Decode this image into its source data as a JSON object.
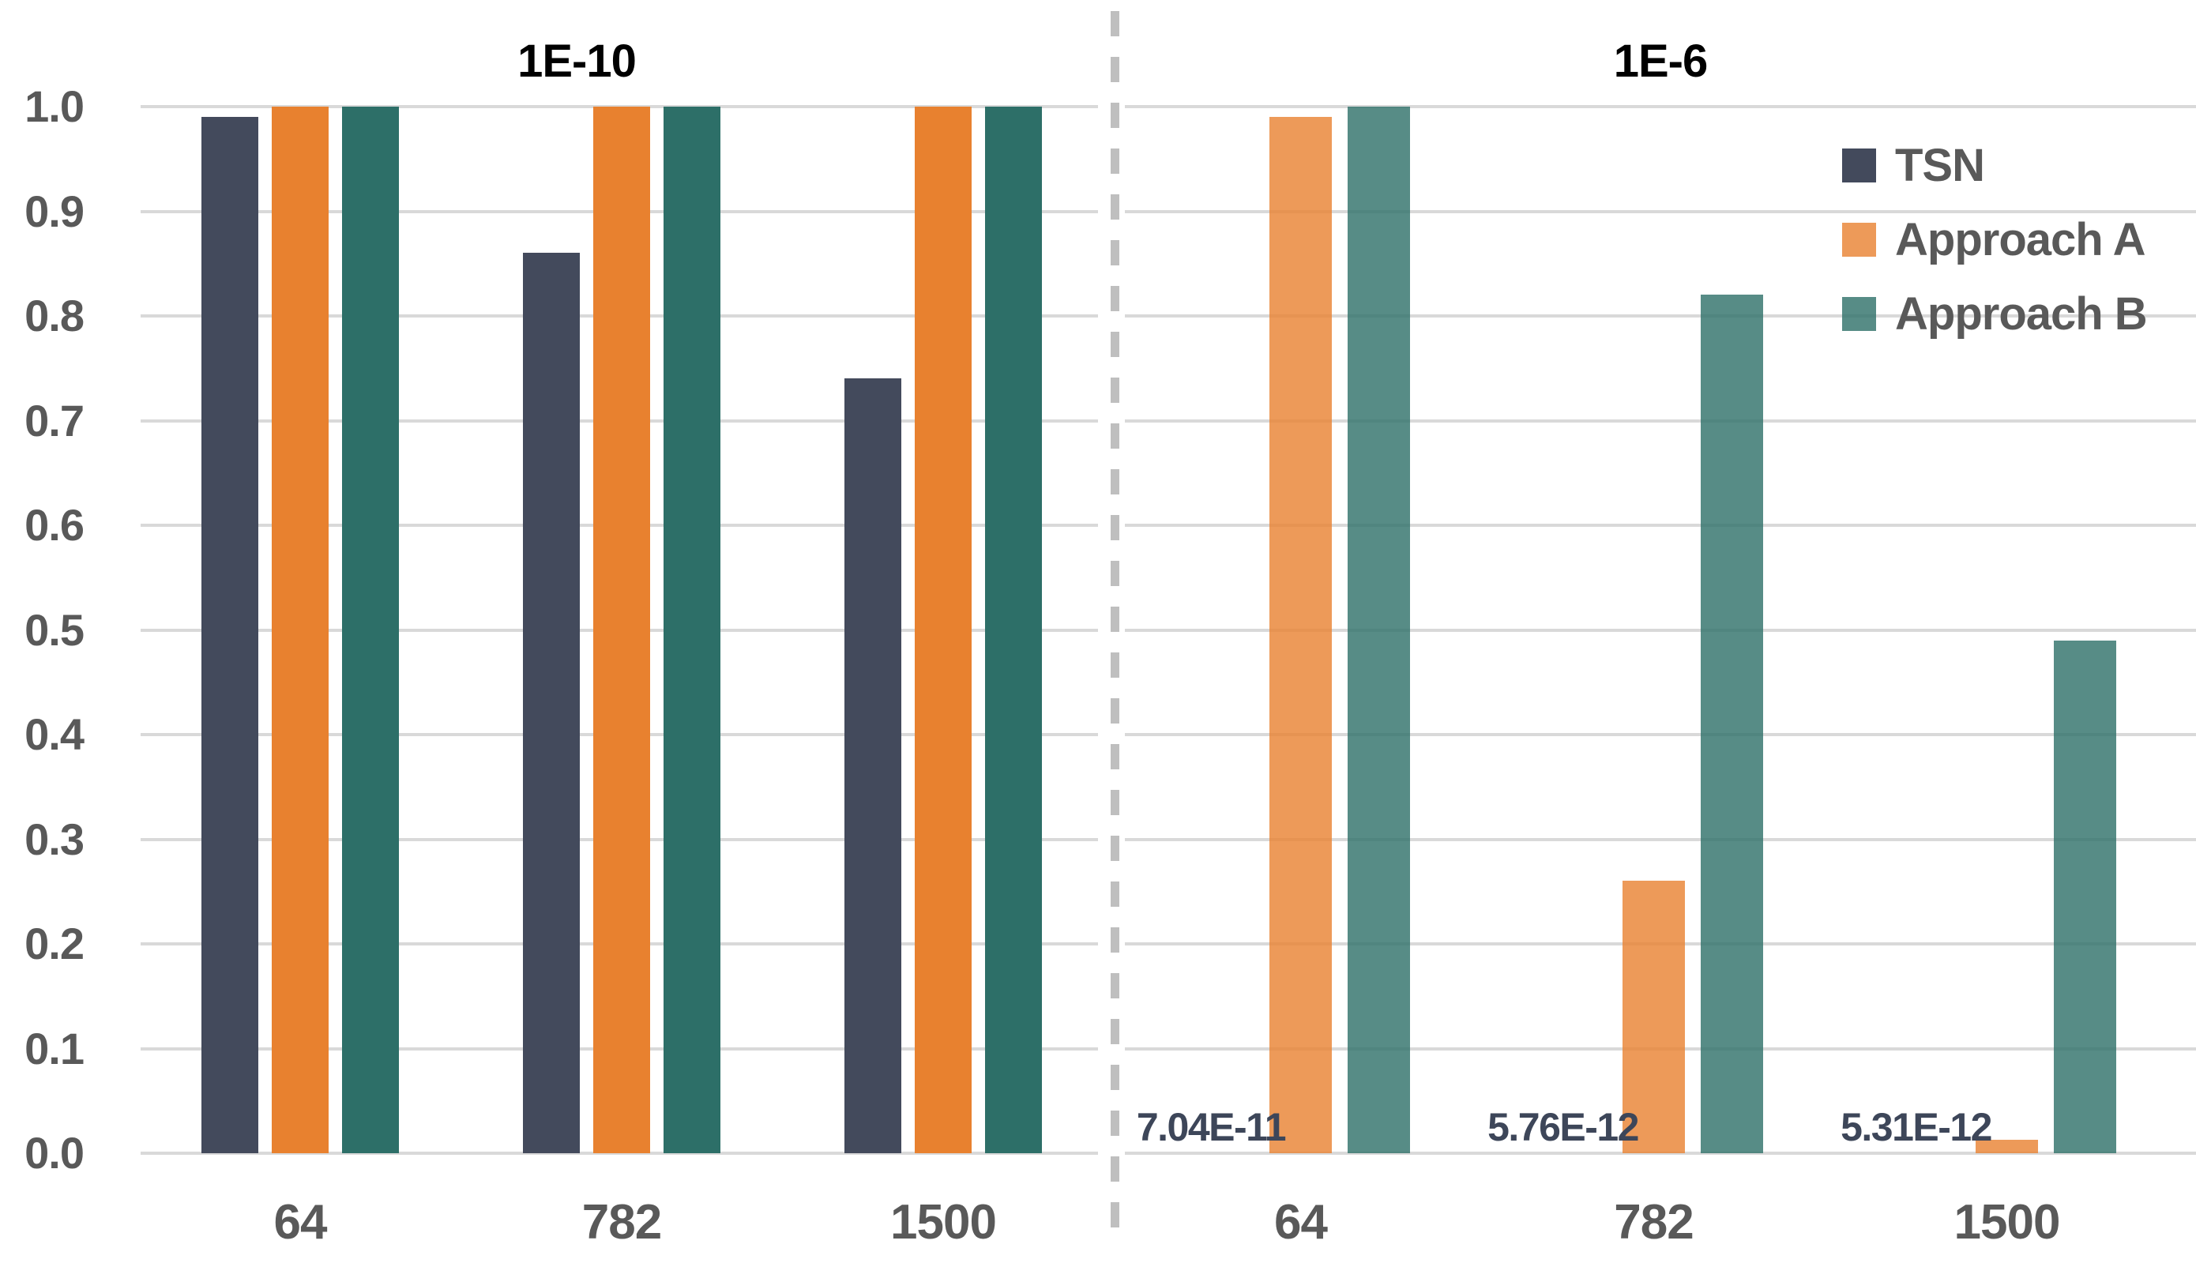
{
  "chart_data": {
    "type": "bar",
    "title": "",
    "ylabel": "",
    "xlabel": "",
    "ylim": [
      0.0,
      1.0
    ],
    "grid": true,
    "yticks": [
      "1.0",
      "0.9",
      "0.8",
      "0.7",
      "0.6",
      "0.5",
      "0.4",
      "0.3",
      "0.2",
      "0.1",
      "0.0"
    ],
    "legend": {
      "position": "top-right",
      "entries": [
        "TSN",
        "Approach A",
        "Approach B"
      ]
    },
    "panels": [
      {
        "title": "1E-10",
        "categories": [
          "64",
          "782",
          "1500"
        ],
        "series": [
          {
            "name": "TSN",
            "values": [
              0.99,
              0.86,
              0.74
            ]
          },
          {
            "name": "Approach A",
            "values": [
              1.0,
              1.0,
              1.0
            ]
          },
          {
            "name": "Approach B",
            "values": [
              1.0,
              1.0,
              1.0
            ]
          }
        ]
      },
      {
        "title": "1E-6",
        "categories": [
          "64",
          "782",
          "1500"
        ],
        "series": [
          {
            "name": "TSN",
            "values": [
              7.04e-11,
              5.76e-12,
              5.31e-12
            ],
            "value_labels": [
              "7.04E-11",
              "5.76E-12",
              "5.31E-12"
            ]
          },
          {
            "name": "Approach A",
            "values": [
              0.99,
              0.26,
              0.013
            ]
          },
          {
            "name": "Approach B",
            "values": [
              1.0,
              0.82,
              0.49
            ]
          }
        ]
      }
    ],
    "colors": {
      "tsn": "#434a5c",
      "approach_a": "#e8812f",
      "approach_b": "#2d6f68",
      "right_panel_bar_opacity": 0.8,
      "gridline": "#d9d9d9",
      "axis_text": "#595959",
      "value_label_text": "#3d4659",
      "divider_dash": "#bfbfbf",
      "background": "#ffffff"
    }
  }
}
